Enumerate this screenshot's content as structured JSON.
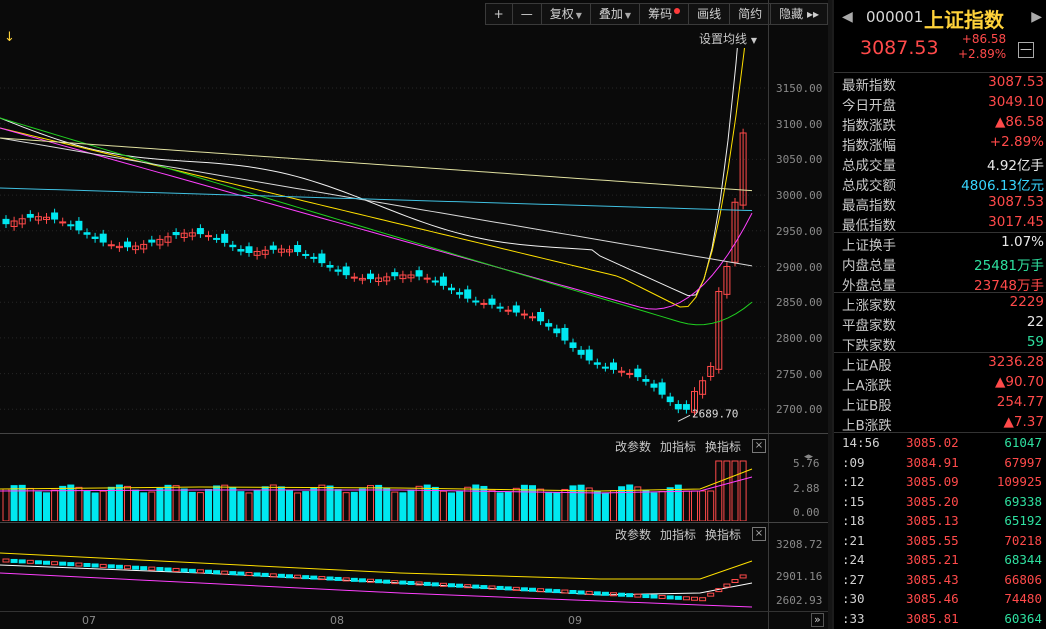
{
  "toolbar": {
    "plus": "+",
    "minus": "—",
    "fuquan": "复权",
    "diejia": "叠加",
    "chouma": "筹码",
    "huaxian": "画线",
    "jianyue": "简约",
    "yincang": "隐藏",
    "expand": "▸▸"
  },
  "ma_setting": "设置均线",
  "low_annotation": "2689.70",
  "price_axis": [
    "3150.00",
    "3100.00",
    "3050.00",
    "3000.00",
    "2950.00",
    "2900.00",
    "2850.00",
    "2800.00",
    "2750.00",
    "2700.00"
  ],
  "vol_panel": {
    "change_params": "改参数",
    "add_indicator": "加指标",
    "switch_indicator": "换指标",
    "close": "×",
    "axis": [
      "5.76",
      "2.88",
      "0.00"
    ]
  },
  "ind_panel": {
    "change_params": "改参数",
    "add_indicator": "加指标",
    "switch_indicator": "换指标",
    "close": "×",
    "axis": [
      "3208.72",
      "2901.16",
      "2602.93"
    ]
  },
  "x_axis": [
    "07",
    "08",
    "09"
  ],
  "colors": {
    "up": "#ff4a4a",
    "down": "#00e8f0",
    "ma5": "#f0f0f0",
    "ma10": "#ffe000",
    "ma20": "#ff40ff",
    "ma30": "#20d020",
    "ma60": "#d8d8d8",
    "ma120": "#40c0e0",
    "ma250": "#ffffff"
  },
  "panel": {
    "code": "000001",
    "name": "上证指数",
    "price": "3087.53",
    "change": "+86.58",
    "change_pct": "+2.89%",
    "min_btn": "—",
    "prev": "◀",
    "next": "▶",
    "stats": [
      {
        "k": "最新指数",
        "v": "3087.53",
        "c": "red"
      },
      {
        "k": "今日开盘",
        "v": "3049.10",
        "c": "red"
      },
      {
        "k": "指数涨跌",
        "v": "▲86.58",
        "c": "red"
      },
      {
        "k": "指数涨幅",
        "v": "+2.89%",
        "c": "red"
      },
      {
        "k": "总成交量",
        "v": "4.92亿手",
        "c": "white"
      },
      {
        "k": "总成交额",
        "v": "4806.13亿元",
        "c": "cyan"
      },
      {
        "k": "最高指数",
        "v": "3087.53",
        "c": "red"
      },
      {
        "k": "最低指数",
        "v": "3017.45",
        "c": "red"
      },
      {
        "k": "上证换手",
        "v": "1.07%",
        "c": "white"
      },
      {
        "k": "内盘总量",
        "v": "25481万手",
        "c": "green"
      },
      {
        "k": "外盘总量",
        "v": "23748万手",
        "c": "red"
      },
      {
        "k": "上涨家数",
        "v": "2229",
        "c": "red"
      },
      {
        "k": "平盘家数",
        "v": "22",
        "c": "white"
      },
      {
        "k": "下跌家数",
        "v": "59",
        "c": "green"
      },
      {
        "k": "上证A股",
        "v": "3236.28",
        "c": "red"
      },
      {
        "k": "上A涨跌",
        "v": "▲90.70",
        "c": "red"
      },
      {
        "k": "上证B股",
        "v": "254.77",
        "c": "red"
      },
      {
        "k": "上B涨跌",
        "v": "▲7.37",
        "c": "red"
      }
    ],
    "ticks": [
      {
        "t": "14:56",
        "p": "3085.02",
        "v": "61047"
      },
      {
        "t": ":09",
        "p": "3084.91",
        "v": "67997"
      },
      {
        "t": ":12",
        "p": "3085.09",
        "v": "109925"
      },
      {
        "t": ":15",
        "p": "3085.20",
        "v": "69338"
      },
      {
        "t": ":18",
        "p": "3085.13",
        "v": "65192"
      },
      {
        "t": ":21",
        "p": "3085.55",
        "v": "70218"
      },
      {
        "t": ":24",
        "p": "3085.21",
        "v": "68344"
      },
      {
        "t": ":27",
        "p": "3085.43",
        "v": "66806"
      },
      {
        "t": ":30",
        "p": "3085.46",
        "v": "74480"
      },
      {
        "t": ":33",
        "p": "3085.81",
        "v": "60364"
      }
    ],
    "tick_vol_colors": [
      "green",
      "red",
      "red",
      "green",
      "green",
      "red",
      "green",
      "red",
      "red",
      "green"
    ]
  }
}
